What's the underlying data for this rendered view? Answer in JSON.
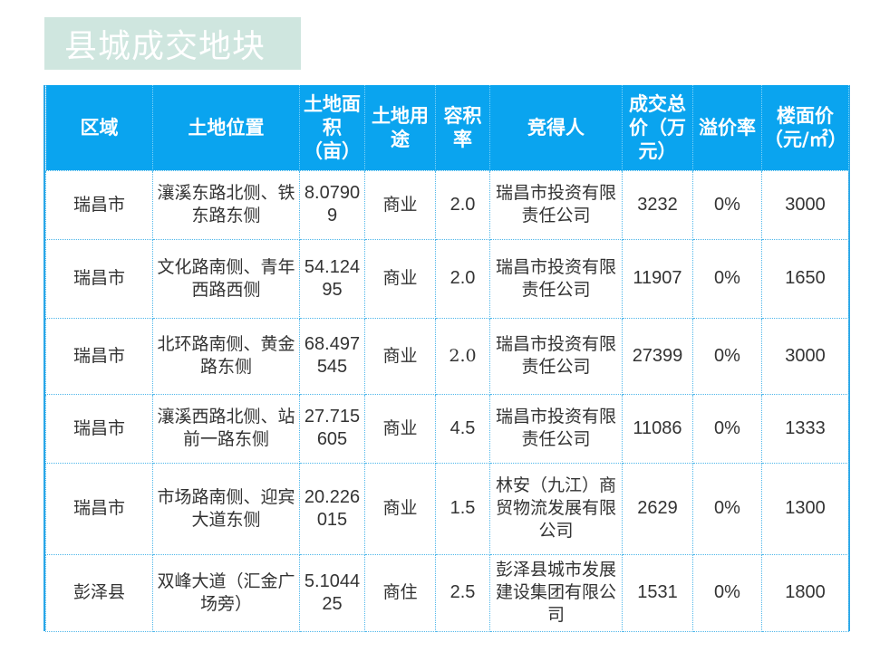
{
  "title": "县城成交地块",
  "headers": {
    "region": "区域",
    "location": "土地位置",
    "area": "土地面积（亩）",
    "use": "土地用途",
    "far": "容积率",
    "winner": "竞得人",
    "price": "成交总价（万元）",
    "premium": "溢价率",
    "floor_price": "楼面价（元/㎡）"
  },
  "rows": [
    {
      "region": "瑞昌市",
      "location": "瀼溪东路北侧、铁东路东侧",
      "area": "8.07909",
      "use": "商业",
      "far": "2.0",
      "winner": "瑞昌市投资有限责任公司",
      "price": "3232",
      "premium": "0%",
      "floor_price": "3000"
    },
    {
      "region": "瑞昌市",
      "location": "文化路南侧、青年西路西侧",
      "area": "54.12495",
      "use": "商业",
      "far": "2.0",
      "winner": "瑞昌市投资有限责任公司",
      "price": "11907",
      "premium": "0%",
      "floor_price": "1650"
    },
    {
      "region": "瑞昌市",
      "location": "北环路南侧、黄金路东侧",
      "area": "68.497545",
      "use": "商业",
      "far": "2.0",
      "winner": "瑞昌市投资有限责任公司",
      "price": "27399",
      "premium": "0%",
      "floor_price": "3000"
    },
    {
      "region": "瑞昌市",
      "location": "瀼溪西路北侧、站前一路东侧",
      "area": "27.715605",
      "use": "商业",
      "far": "4.5",
      "winner": "瑞昌市投资有限责任公司",
      "price": "11086",
      "premium": "0%",
      "floor_price": "1333"
    },
    {
      "region": "瑞昌市",
      "location": "市场路南侧、迎宾大道东侧",
      "area": "20.226015",
      "use": "商业",
      "far": "1.5",
      "winner": "林安（九江）商贸物流发展有限公司",
      "price": "2629",
      "premium": "0%",
      "floor_price": "1300"
    },
    {
      "region": "彭泽县",
      "location": "双峰大道（汇金广场旁）",
      "area": "5.104425",
      "use": "商住",
      "far": "2.5",
      "winner": "彭泽县城市发展建设集团有限公司",
      "price": "1531",
      "premium": "0%",
      "floor_price": "1800"
    }
  ]
}
